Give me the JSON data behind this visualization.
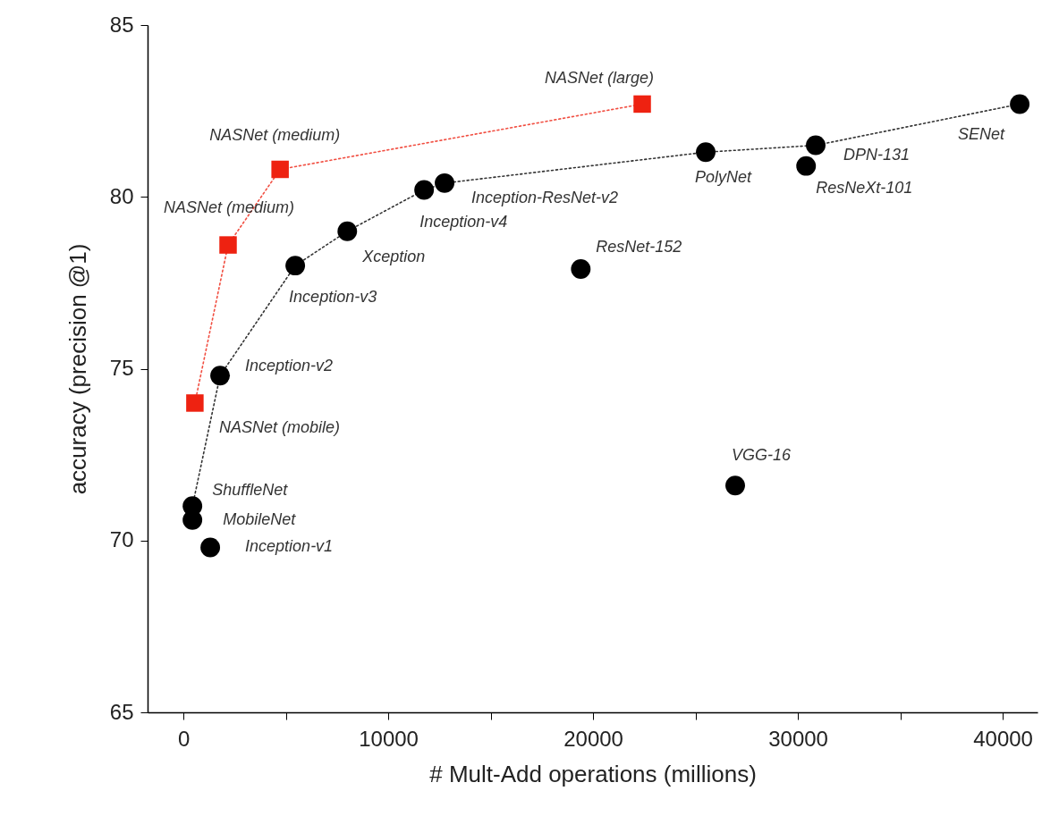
{
  "chart_data": {
    "type": "line",
    "xlabel": "# Mult-Add operations (millions)",
    "ylabel": "accuracy (precision @1)",
    "xlim": [
      -1750,
      41700
    ],
    "ylim": [
      65,
      85
    ],
    "xticks": [
      0,
      {
        "value": 5000,
        "label": null
      },
      10000,
      {
        "value": 15000,
        "label": null
      },
      20000,
      {
        "value": 25000,
        "label": null
      },
      30000,
      {
        "value": 35000,
        "label": null
      },
      40000
    ],
    "yticks": [
      65,
      70,
      75,
      80,
      85
    ],
    "series": [
      {
        "type": "line",
        "color": "#ee2211",
        "marker": "square",
        "line_style": "dotted",
        "x": [
          560,
          2180,
          4720,
          22400
        ],
        "values": [
          74.0,
          78.6,
          80.8,
          82.7
        ]
      },
      {
        "type": "line",
        "color": "#000000",
        "marker": "circle",
        "line_style": "dotted",
        "x": [
          440,
          1790,
          5460,
          8000,
          11750,
          12750,
          25500,
          30870,
          40830
        ],
        "values": [
          71.0,
          74.8,
          78.0,
          79.0,
          80.2,
          80.4,
          81.3,
          81.5,
          82.7
        ]
      },
      {
        "type": "scatter",
        "color": "#000000",
        "marker": "circle",
        "x": [
          440,
          1310,
          19400,
          26940,
          30400
        ],
        "values": [
          70.6,
          69.8,
          77.9,
          71.6,
          80.9
        ]
      }
    ],
    "annotations": [
      {
        "text": "NASNet (large)",
        "x": 22400,
        "y": 82.7
      },
      {
        "text": "NASNet (medium)",
        "x": 4720,
        "y": 80.8
      },
      {
        "text": "NASNet (medium)",
        "x": 2180,
        "y": 78.6
      },
      {
        "text": "NASNet (mobile)",
        "x": 560,
        "y": 74.0
      },
      {
        "text": "ShuffleNet",
        "x": 440,
        "y": 71.0
      },
      {
        "text": "MobileNet",
        "x": 440,
        "y": 70.6
      },
      {
        "text": "Inception-v1",
        "x": 1310,
        "y": 69.8
      },
      {
        "text": "Inception-v2",
        "x": 1790,
        "y": 74.8
      },
      {
        "text": "Inception-v3",
        "x": 5460,
        "y": 78.0
      },
      {
        "text": "Xception",
        "x": 8000,
        "y": 79.0
      },
      {
        "text": "Inception-v4",
        "x": 11750,
        "y": 80.2
      },
      {
        "text": "Inception-ResNet-v2",
        "x": 12750,
        "y": 80.4
      },
      {
        "text": "PolyNet",
        "x": 25500,
        "y": 81.3
      },
      {
        "text": "DPN-131",
        "x": 30870,
        "y": 81.5
      },
      {
        "text": "ResNeXt-101",
        "x": 30400,
        "y": 80.9
      },
      {
        "text": "SENet",
        "x": 40830,
        "y": 82.7
      },
      {
        "text": "ResNet-152",
        "x": 19400,
        "y": 77.9
      },
      {
        "text": "VGG-16",
        "x": 26940,
        "y": 71.6
      }
    ]
  }
}
